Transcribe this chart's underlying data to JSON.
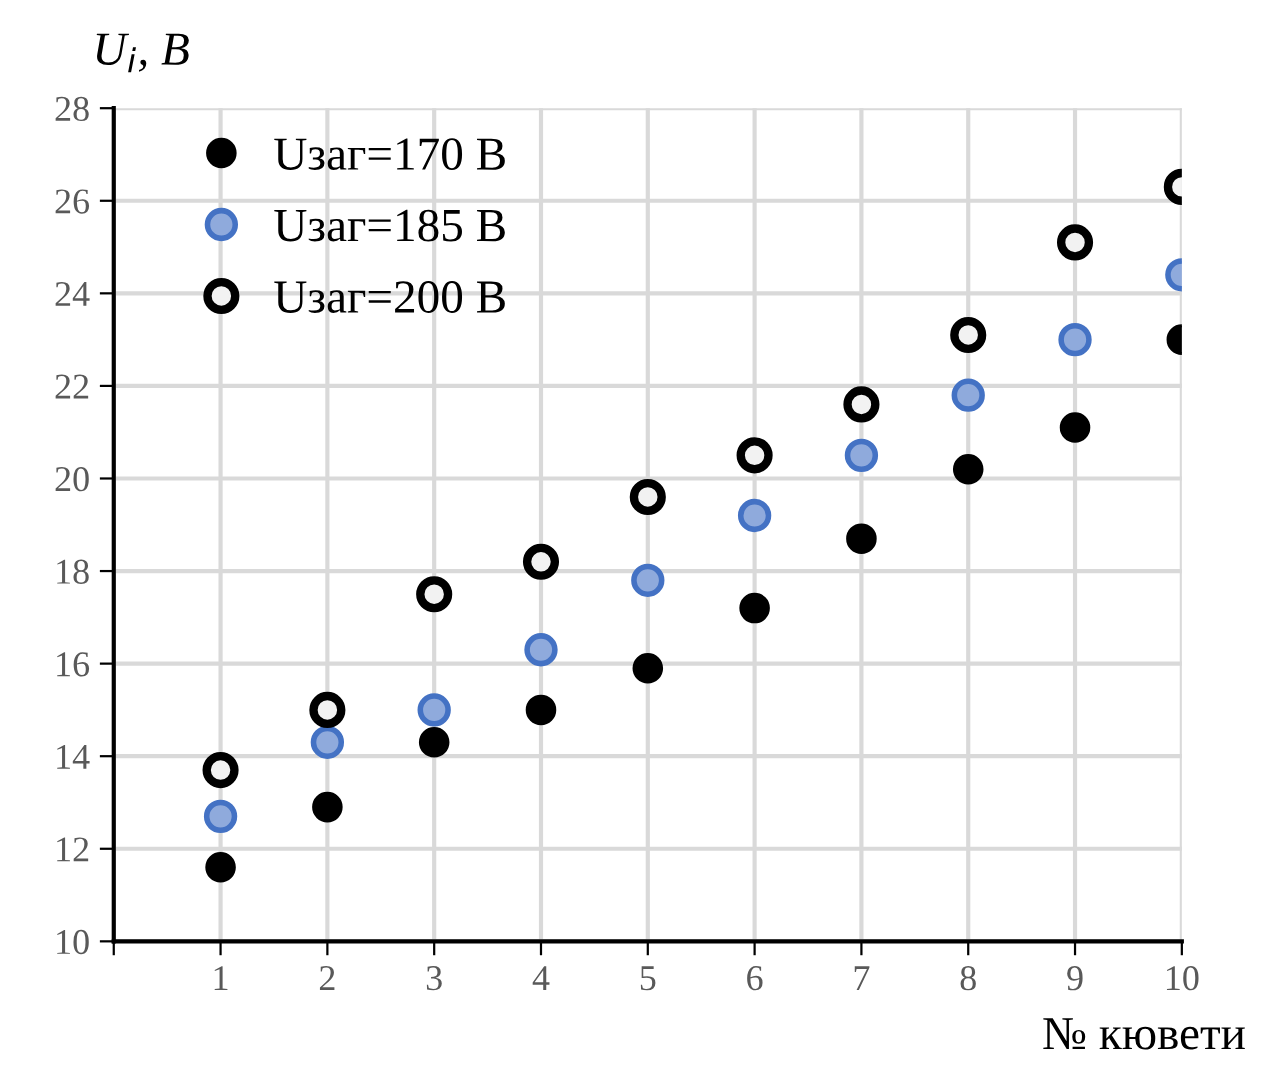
{
  "chart_data": {
    "type": "scatter",
    "ylabel": "U$_{i}$, В",
    "xlabel": "№ кювети",
    "x": [
      1,
      2,
      3,
      4,
      5,
      6,
      7,
      8,
      9,
      10
    ],
    "series": [
      {
        "name": "Uзаг=170 В",
        "color": "#000000",
        "values": [
          11.6,
          12.9,
          14.3,
          15.0,
          15.9,
          17.2,
          18.7,
          20.2,
          21.1,
          23.0
        ]
      },
      {
        "name": "Uзаг=185 В",
        "color": "#4472c4",
        "values": [
          12.7,
          14.3,
          15.0,
          16.3,
          17.8,
          19.2,
          20.5,
          21.8,
          23.0,
          24.4
        ]
      },
      {
        "name": "Uзаг=200 В",
        "color": "#000000",
        "values": [
          13.7,
          15.0,
          17.5,
          18.2,
          19.6,
          20.5,
          21.6,
          23.1,
          25.1,
          26.3
        ]
      }
    ],
    "xlim": [
      0,
      10
    ],
    "xticks": [
      {
        "value": 0,
        "label": null
      },
      1,
      2,
      3,
      4,
      5,
      6,
      7,
      8,
      9,
      10
    ],
    "ylim": [
      10,
      28
    ],
    "yticks": [
      10,
      12,
      14,
      16,
      18,
      20,
      22,
      24,
      26,
      28
    ],
    "grid": true,
    "legend": "top left",
    "marker": "circle"
  }
}
